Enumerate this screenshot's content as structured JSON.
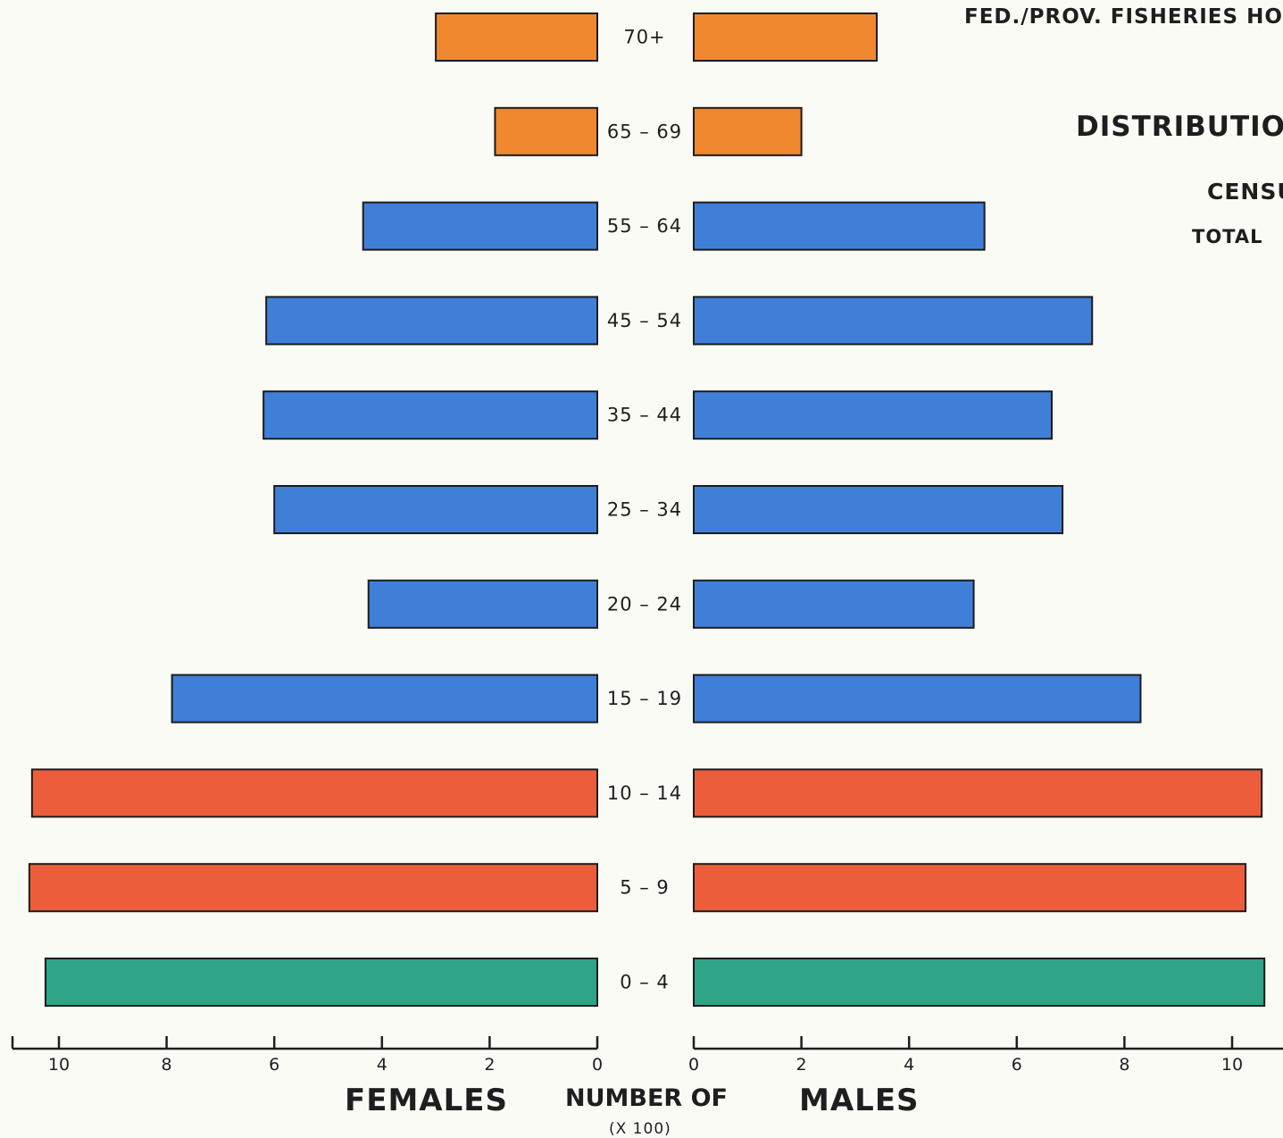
{
  "header": {
    "line1": "FED./PROV. FISHERIES HO",
    "line2": "DISTRIBUTION",
    "line3": "CENSU",
    "line4": "TOTAL"
  },
  "footer": {
    "females_label": "FEMALES",
    "males_label": "MALES",
    "number_of_label": "NUMBER OF",
    "scale_note": "(X 100)"
  },
  "colors": {
    "older": "#f0882f",
    "working_age": "#3f7fd8",
    "school_age": "#ec5e3b",
    "infants": "#2fa486",
    "axis": "#1e1e1e"
  },
  "chart_data": {
    "type": "bar",
    "orientation": "horizontal-pyramid",
    "categories": [
      "70+",
      "65-69",
      "55-64",
      "45-54",
      "35-44",
      "25-34",
      "20-24",
      "15-19",
      "10-14",
      "5-9",
      "0-4"
    ],
    "series": [
      {
        "name": "FEMALES",
        "values": [
          3.0,
          1.9,
          4.35,
          6.15,
          6.2,
          6.0,
          4.25,
          7.9,
          10.5,
          10.55,
          10.25
        ]
      },
      {
        "name": "MALES",
        "values": [
          3.4,
          2.0,
          5.4,
          7.4,
          6.65,
          6.85,
          5.2,
          8.3,
          10.55,
          10.25,
          10.6
        ]
      }
    ],
    "color_groups": [
      "older",
      "older",
      "working_age",
      "working_age",
      "working_age",
      "working_age",
      "working_age",
      "working_age",
      "school_age",
      "school_age",
      "infants"
    ],
    "x_ticks": [
      "0",
      "2",
      "4",
      "6",
      "8",
      "10"
    ],
    "xlim": [
      0,
      10.5
    ],
    "xlabel": "NUMBER OF (X 100)",
    "grid": false,
    "legend": "none"
  }
}
